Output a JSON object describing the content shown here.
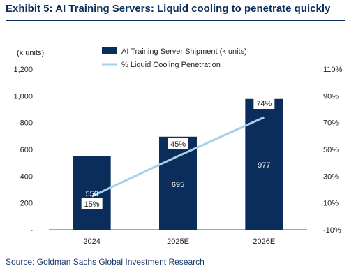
{
  "title": "Exhibit 5: AI Training Servers: Liquid cooling to penetrate quickly",
  "source": "Source: Goldman Sachs Global Investment Research",
  "chart_data": {
    "type": "bar+line",
    "categories": [
      "2024",
      "2025E",
      "2026E"
    ],
    "left_axis": {
      "unit_label": "(k units)",
      "ticks": [
        "-",
        "200",
        "400",
        "600",
        "800",
        "1,000",
        "1,200"
      ],
      "min": 0,
      "max": 1200
    },
    "right_axis": {
      "ticks": [
        "-10%",
        "10%",
        "30%",
        "50%",
        "70%",
        "90%",
        "110%"
      ],
      "min": -10,
      "max": 110
    },
    "series": [
      {
        "name": "AI Training Server Shipment (k units)",
        "kind": "bar",
        "axis": "left",
        "values": [
          550,
          695,
          977
        ],
        "labels": [
          "550",
          "695",
          "977"
        ],
        "color": "#0b2d5b"
      },
      {
        "name": "% Liquid Cooling Penetration",
        "kind": "line",
        "axis": "right",
        "values": [
          15,
          45,
          74
        ],
        "labels": [
          "15%",
          "45%",
          "74%"
        ],
        "color": "#a9cfe8"
      }
    ],
    "legend_position": "top-center",
    "grid": false
  }
}
